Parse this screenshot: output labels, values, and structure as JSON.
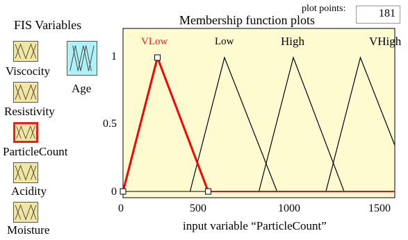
{
  "sidebar": {
    "title": "FIS Variables",
    "variables": [
      {
        "label": "Viscocity"
      },
      {
        "label": "Resistivity"
      },
      {
        "label": "ParticleCount",
        "selected": true
      },
      {
        "label": "Acidity"
      },
      {
        "label": "Moisture"
      }
    ],
    "output_variable": {
      "label": "Age"
    }
  },
  "plot": {
    "title": "Membership function plots",
    "plot_points_label": "plot points:",
    "plot_points_value": "181"
  },
  "chart_data": {
    "type": "line",
    "title": "Membership function plots",
    "xlabel": "input variable “ParticleCount”",
    "ylabel": "",
    "xlim": [
      0,
      1500
    ],
    "ylim": [
      0,
      1
    ],
    "x_ticks": [
      "0",
      "500",
      "1000",
      "1500"
    ],
    "y_ticks": [
      "0",
      "0.5",
      "1"
    ],
    "grid": false,
    "series": [
      {
        "name": "VLow",
        "color": "#ff0000",
        "x": [
          0,
          190,
          470
        ],
        "y": [
          0,
          1,
          0
        ]
      },
      {
        "name": "Low",
        "color": "#000000",
        "x": [
          370,
          560,
          850
        ],
        "y": [
          0,
          1,
          0
        ]
      },
      {
        "name": "High",
        "color": "#000000",
        "x": [
          750,
          940,
          1220
        ],
        "y": [
          0,
          1,
          0
        ]
      },
      {
        "name": "VHigh",
        "color": "#000000",
        "x": [
          1120,
          1310,
          1600
        ],
        "y": [
          0,
          1,
          0
        ]
      }
    ]
  },
  "colors": {
    "plot_background": "#fffbd0",
    "variable_button": "#f3e6a0",
    "output_button": "#aef2f7",
    "selected_border": "#e8231f"
  }
}
